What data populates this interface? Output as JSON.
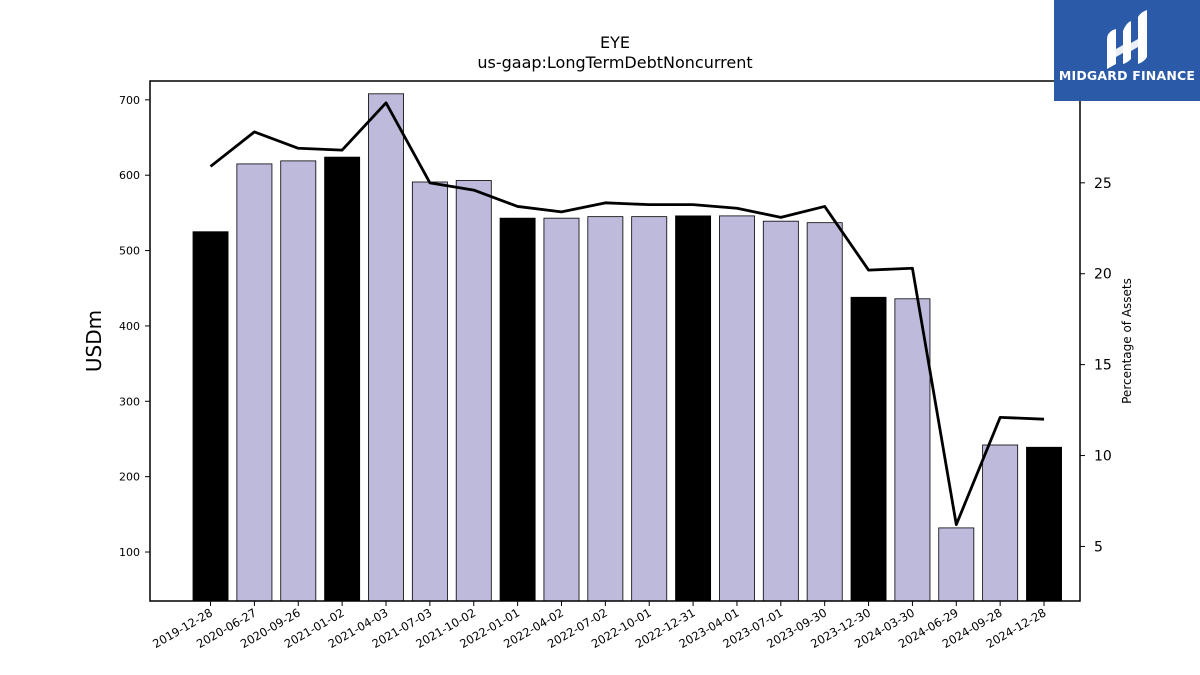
{
  "chart_data": {
    "type": "bar",
    "title": "EYE",
    "subtitle": "us-gaap:LongTermDebtNoncurrent",
    "ylabel": "USDm",
    "y2label": "Percentage of Assets",
    "categories": [
      "2019-12-28",
      "2020-06-27",
      "2020-09-26",
      "2021-01-02",
      "2021-04-03",
      "2021-07-03",
      "2021-10-02",
      "2022-01-01",
      "2022-04-02",
      "2022-07-02",
      "2022-10-01",
      "2022-12-31",
      "2023-04-01",
      "2023-07-01",
      "2023-09-30",
      "2023-12-30",
      "2024-03-30",
      "2024-06-29",
      "2024-09-28",
      "2024-12-28"
    ],
    "series": [
      {
        "type": "bar",
        "values": [
          525,
          615,
          619,
          624,
          708,
          591,
          593,
          543,
          543,
          545,
          545,
          546,
          546,
          539,
          537,
          438,
          436,
          132,
          242,
          239
        ],
        "highlight": [
          true,
          false,
          false,
          true,
          false,
          false,
          false,
          true,
          false,
          false,
          false,
          true,
          false,
          false,
          false,
          true,
          false,
          false,
          false,
          true
        ]
      },
      {
        "type": "line",
        "axis": "right",
        "values": [
          25.9,
          27.8,
          26.9,
          26.8,
          29.4,
          25.0,
          24.6,
          23.7,
          23.4,
          23.9,
          23.8,
          23.8,
          23.6,
          23.1,
          23.7,
          20.2,
          20.3,
          6.2,
          12.1,
          12.0
        ]
      }
    ],
    "ylim": [
      35,
      725
    ],
    "yticks": [
      100,
      200,
      300,
      400,
      500,
      600,
      700
    ],
    "y2lim": [
      2,
      30.6
    ],
    "y2ticks": [
      5,
      10,
      15,
      20,
      25
    ],
    "grid": false,
    "colors": {
      "highlight_bar": "#000000",
      "bar": "#bdbadb",
      "line": "#000000"
    }
  },
  "logo": {
    "text": "MIDGARD FINANCE",
    "background": "#2b5aa8"
  }
}
